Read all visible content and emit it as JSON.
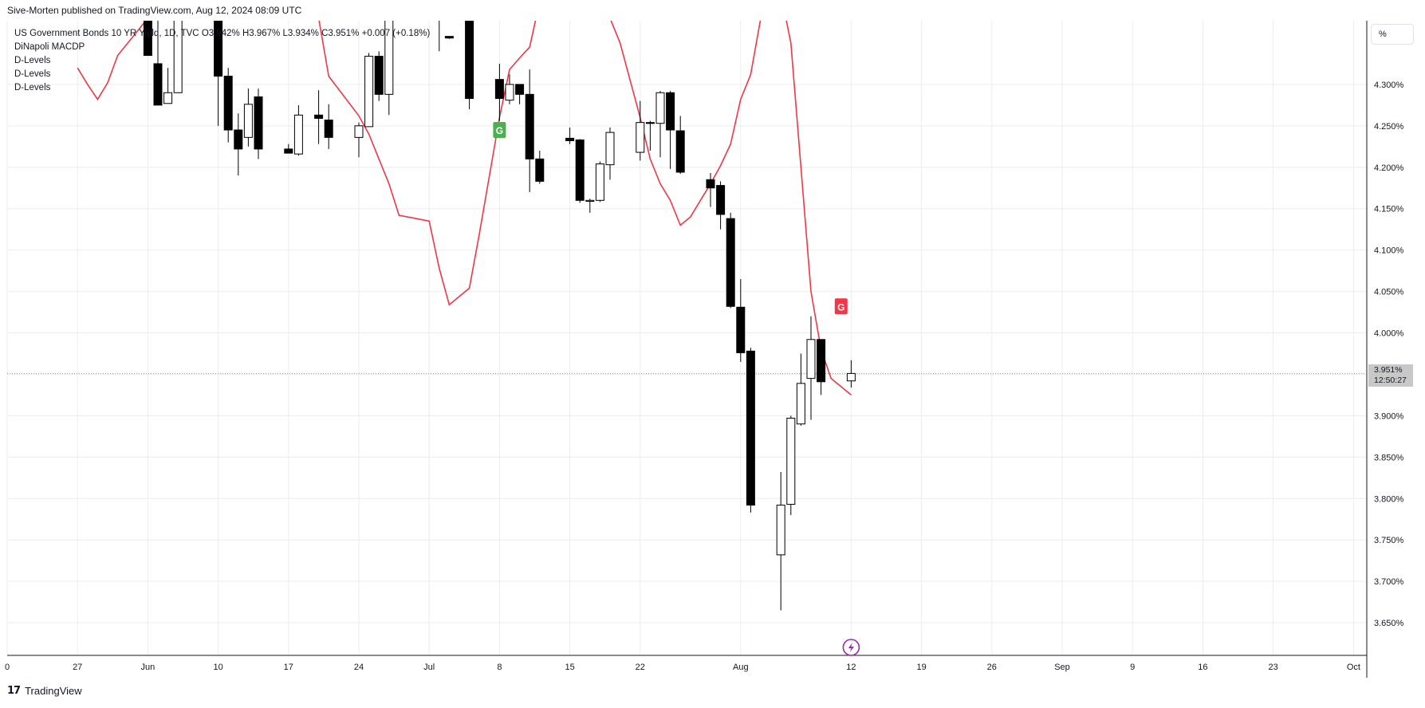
{
  "header": {
    "published": "Sive-Morten published on TradingView.com, Aug 12, 2024 08:09 UTC"
  },
  "legend": {
    "symbol": "US Government Bonds 10 YR Yield, 1D, TVC",
    "open": "O3.942%",
    "high": "H3.967%",
    "low": "L3.934%",
    "close": "C3.951%",
    "change": "+0.007 (+0.18%)",
    "indicators": [
      "DiNapoli MACDP",
      "D-Levels",
      "D-Levels",
      "D-Levels"
    ]
  },
  "price_axis": {
    "unit": "%",
    "last_price": "3.951%",
    "countdown": "12:50:27"
  },
  "footer": {
    "brand": "TradingView"
  },
  "colors": {
    "up_body": "#ffffff",
    "down_body": "#000000",
    "wick": "#000000",
    "macdp_line": "#f23645",
    "signal_green": "#4caf50",
    "signal_red": "#f23645",
    "grid": "#e9edf2",
    "event_icon": "#9c27b0"
  },
  "chart_data": {
    "type": "candlestick",
    "title": "US Government Bonds 10 YR Yield, 1D, TVC",
    "ylabel": "%",
    "ylim": [
      3.6,
      4.4
    ],
    "y_ticks": [
      3.65,
      3.7,
      3.75,
      3.8,
      3.85,
      3.9,
      3.95,
      4.0,
      4.05,
      4.1,
      4.15,
      4.2,
      4.25,
      4.3
    ],
    "y_tick_labels": [
      "3.650%",
      "3.700%",
      "3.750%",
      "3.800%",
      "3.850%",
      "3.900%",
      "3.950%",
      "4.000%",
      "4.050%",
      "4.100%",
      "4.150%",
      "4.200%",
      "4.250%",
      "4.300%"
    ],
    "x_tick_labels": [
      {
        "label": "0",
        "date": "2024-05-20"
      },
      {
        "label": "27",
        "date": "2024-05-27"
      },
      {
        "label": "Jun",
        "date": "2024-06-03"
      },
      {
        "label": "10",
        "date": "2024-06-10"
      },
      {
        "label": "17",
        "date": "2024-06-17"
      },
      {
        "label": "24",
        "date": "2024-06-24"
      },
      {
        "label": "Jul",
        "date": "2024-07-01"
      },
      {
        "label": "8",
        "date": "2024-07-08"
      },
      {
        "label": "15",
        "date": "2024-07-15"
      },
      {
        "label": "22",
        "date": "2024-07-22"
      },
      {
        "label": "Aug",
        "date": "2024-08-01"
      },
      {
        "label": "12",
        "date": "2024-08-12"
      },
      {
        "label": "19",
        "date": "2024-08-19"
      },
      {
        "label": "26",
        "date": "2024-08-26"
      },
      {
        "label": "Sep",
        "date": "2024-09-02"
      },
      {
        "label": "9",
        "date": "2024-09-09"
      },
      {
        "label": "16",
        "date": "2024-09-16"
      },
      {
        "label": "23",
        "date": "2024-09-23"
      },
      {
        "label": "Oct",
        "date": "2024-10-01"
      }
    ],
    "candles": [
      {
        "date": "2024-06-03",
        "o": 4.44,
        "h": 4.5,
        "l": 4.335,
        "c": 4.335
      },
      {
        "date": "2024-06-04",
        "o": 4.325,
        "h": 4.4,
        "l": 4.275,
        "c": 4.275
      },
      {
        "date": "2024-06-05",
        "o": 4.277,
        "h": 4.32,
        "l": 4.277,
        "c": 4.29
      },
      {
        "date": "2024-06-06",
        "o": 4.29,
        "h": 4.44,
        "l": 4.29,
        "c": 4.44
      },
      {
        "date": "2024-06-10",
        "o": 4.48,
        "h": 4.5,
        "l": 4.25,
        "c": 4.31
      },
      {
        "date": "2024-06-11",
        "o": 4.31,
        "h": 4.32,
        "l": 4.23,
        "c": 4.245
      },
      {
        "date": "2024-06-12",
        "o": 4.245,
        "h": 4.265,
        "l": 4.19,
        "c": 4.222
      },
      {
        "date": "2024-06-13",
        "o": 4.236,
        "h": 4.295,
        "l": 4.225,
        "c": 4.276
      },
      {
        "date": "2024-06-14",
        "o": 4.285,
        "h": 4.295,
        "l": 4.21,
        "c": 4.222
      },
      {
        "date": "2024-06-17",
        "o": 4.222,
        "h": 4.228,
        "l": 4.217,
        "c": 4.217
      },
      {
        "date": "2024-06-18",
        "o": 4.216,
        "h": 4.275,
        "l": 4.214,
        "c": 4.263
      },
      {
        "date": "2024-06-20",
        "o": 4.263,
        "h": 4.293,
        "l": 4.228,
        "c": 4.259
      },
      {
        "date": "2024-06-21",
        "o": 4.257,
        "h": 4.276,
        "l": 4.222,
        "c": 4.236
      },
      {
        "date": "2024-06-24",
        "o": 4.236,
        "h": 4.254,
        "l": 4.212,
        "c": 4.25
      },
      {
        "date": "2024-06-25",
        "o": 4.249,
        "h": 4.338,
        "l": 4.249,
        "c": 4.334
      },
      {
        "date": "2024-06-26",
        "o": 4.334,
        "h": 4.34,
        "l": 4.28,
        "c": 4.288
      },
      {
        "date": "2024-06-27",
        "o": 4.288,
        "h": 4.48,
        "l": 4.263,
        "c": 4.48
      },
      {
        "date": "2024-07-01",
        "o": 4.47,
        "h": 4.49,
        "l": 4.4,
        "c": 4.4
      },
      {
        "date": "2024-07-02",
        "o": 4.38,
        "h": 4.39,
        "l": 4.34,
        "c": 4.38
      },
      {
        "date": "2024-07-03",
        "o": 4.358,
        "h": 4.358,
        "l": 4.355,
        "c": 4.356
      },
      {
        "date": "2024-07-05",
        "o": 4.4,
        "h": 4.42,
        "l": 4.27,
        "c": 4.283
      },
      {
        "date": "2024-07-08",
        "o": 4.306,
        "h": 4.325,
        "l": 4.256,
        "c": 4.283
      },
      {
        "date": "2024-07-09",
        "o": 4.281,
        "h": 4.312,
        "l": 4.276,
        "c": 4.3
      },
      {
        "date": "2024-07-10",
        "o": 4.3,
        "h": 4.3,
        "l": 4.276,
        "c": 4.288
      },
      {
        "date": "2024-07-11",
        "o": 4.288,
        "h": 4.318,
        "l": 4.17,
        "c": 4.21
      },
      {
        "date": "2024-07-12",
        "o": 4.21,
        "h": 4.22,
        "l": 4.18,
        "c": 4.183
      },
      {
        "date": "2024-07-15",
        "o": 4.235,
        "h": 4.248,
        "l": 4.228,
        "c": 4.232
      },
      {
        "date": "2024-07-16",
        "o": 4.233,
        "h": 4.234,
        "l": 4.157,
        "c": 4.16
      },
      {
        "date": "2024-07-17",
        "o": 4.16,
        "h": 4.162,
        "l": 4.145,
        "c": 4.16
      },
      {
        "date": "2024-07-18",
        "o": 4.16,
        "h": 4.207,
        "l": 4.158,
        "c": 4.204
      },
      {
        "date": "2024-07-19",
        "o": 4.203,
        "h": 4.248,
        "l": 4.185,
        "c": 4.242
      },
      {
        "date": "2024-07-22",
        "o": 4.218,
        "h": 4.28,
        "l": 4.208,
        "c": 4.254
      },
      {
        "date": "2024-07-23",
        "o": 4.254,
        "h": 4.256,
        "l": 4.22,
        "c": 4.253
      },
      {
        "date": "2024-07-24",
        "o": 4.253,
        "h": 4.292,
        "l": 4.212,
        "c": 4.29
      },
      {
        "date": "2024-07-25",
        "o": 4.29,
        "h": 4.292,
        "l": 4.198,
        "c": 4.245
      },
      {
        "date": "2024-07-26",
        "o": 4.244,
        "h": 4.262,
        "l": 4.192,
        "c": 4.194
      },
      {
        "date": "2024-07-29",
        "o": 4.185,
        "h": 4.193,
        "l": 4.152,
        "c": 4.175
      },
      {
        "date": "2024-07-30",
        "o": 4.178,
        "h": 4.183,
        "l": 4.125,
        "c": 4.143
      },
      {
        "date": "2024-07-31",
        "o": 4.138,
        "h": 4.145,
        "l": 4.03,
        "c": 4.032
      },
      {
        "date": "2024-08-01",
        "o": 4.031,
        "h": 4.065,
        "l": 3.965,
        "c": 3.976
      },
      {
        "date": "2024-08-02",
        "o": 3.978,
        "h": 3.982,
        "l": 3.783,
        "c": 3.792
      },
      {
        "date": "2024-08-05",
        "o": 3.732,
        "h": 3.832,
        "l": 3.665,
        "c": 3.792
      },
      {
        "date": "2024-08-06",
        "o": 3.793,
        "h": 3.9,
        "l": 3.78,
        "c": 3.897
      },
      {
        "date": "2024-08-07",
        "o": 3.89,
        "h": 3.975,
        "l": 3.888,
        "c": 3.939
      },
      {
        "date": "2024-08-08",
        "o": 3.945,
        "h": 4.02,
        "l": 3.895,
        "c": 3.992
      },
      {
        "date": "2024-08-09",
        "o": 3.992,
        "h": 3.992,
        "l": 3.925,
        "c": 3.941
      },
      {
        "date": "2024-08-12",
        "o": 3.942,
        "h": 3.967,
        "l": 3.934,
        "c": 3.951
      }
    ],
    "indicator_line": {
      "name": "DiNapoli MACDP",
      "points": [
        {
          "date": "2024-05-27",
          "y": 4.32
        },
        {
          "date": "2024-05-28",
          "y": 4.3
        },
        {
          "date": "2024-05-29",
          "y": 4.282
        },
        {
          "date": "2024-05-30",
          "y": 4.302
        },
        {
          "date": "2024-05-31",
          "y": 4.335
        },
        {
          "date": "2024-06-03",
          "y": 4.38
        },
        {
          "date": "2024-06-04",
          "y": 4.42
        },
        {
          "date": "2024-06-14",
          "y": 4.45
        },
        {
          "date": "2024-06-17",
          "y": 4.44
        },
        {
          "date": "2024-06-18",
          "y": 4.41
        },
        {
          "date": "2024-06-20",
          "y": 4.38
        },
        {
          "date": "2024-06-21",
          "y": 4.31
        },
        {
          "date": "2024-06-24",
          "y": 4.262
        },
        {
          "date": "2024-06-25",
          "y": 4.24
        },
        {
          "date": "2024-06-26",
          "y": 4.21
        },
        {
          "date": "2024-06-27",
          "y": 4.18
        },
        {
          "date": "2024-06-28",
          "y": 4.142
        },
        {
          "date": "2024-07-01",
          "y": 4.135
        },
        {
          "date": "2024-07-02",
          "y": 4.078
        },
        {
          "date": "2024-07-03",
          "y": 4.034
        },
        {
          "date": "2024-07-05",
          "y": 4.054
        },
        {
          "date": "2024-07-06",
          "y": 4.12
        },
        {
          "date": "2024-07-07",
          "y": 4.19
        },
        {
          "date": "2024-07-08",
          "y": 4.26
        },
        {
          "date": "2024-07-09",
          "y": 4.318
        },
        {
          "date": "2024-07-10",
          "y": 4.332
        },
        {
          "date": "2024-07-11",
          "y": 4.345
        },
        {
          "date": "2024-07-12",
          "y": 4.4
        },
        {
          "date": "2024-07-13",
          "y": 4.45
        },
        {
          "date": "2024-07-16",
          "y": 4.45
        },
        {
          "date": "2024-07-17",
          "y": 4.42
        },
        {
          "date": "2024-07-18",
          "y": 4.41
        },
        {
          "date": "2024-07-19",
          "y": 4.38
        },
        {
          "date": "2024-07-20",
          "y": 4.35
        },
        {
          "date": "2024-07-22",
          "y": 4.26
        },
        {
          "date": "2024-07-23",
          "y": 4.21
        },
        {
          "date": "2024-07-24",
          "y": 4.18
        },
        {
          "date": "2024-07-25",
          "y": 4.16
        },
        {
          "date": "2024-07-26",
          "y": 4.13
        },
        {
          "date": "2024-07-27",
          "y": 4.14
        },
        {
          "date": "2024-07-29",
          "y": 4.18
        },
        {
          "date": "2024-07-30",
          "y": 4.202
        },
        {
          "date": "2024-07-31",
          "y": 4.228
        },
        {
          "date": "2024-08-01",
          "y": 4.282
        },
        {
          "date": "2024-08-02",
          "y": 4.312
        },
        {
          "date": "2024-08-03",
          "y": 4.38
        },
        {
          "date": "2024-08-04",
          "y": 4.42
        },
        {
          "date": "2024-08-05",
          "y": 4.41
        },
        {
          "date": "2024-08-06",
          "y": 4.35
        },
        {
          "date": "2024-08-07",
          "y": 4.2
        },
        {
          "date": "2024-08-08",
          "y": 4.05
        },
        {
          "date": "2024-08-09",
          "y": 3.98
        },
        {
          "date": "2024-08-10",
          "y": 3.945
        },
        {
          "date": "2024-08-12",
          "y": 3.925
        }
      ]
    },
    "signals": [
      {
        "label": "G",
        "date": "2024-07-08",
        "y": 4.245,
        "color": "green"
      },
      {
        "label": "G",
        "date": "2024-08-11",
        "y": 4.032,
        "color": "red"
      }
    ],
    "event_marker": {
      "date": "2024-08-12",
      "icon": "lightning-icon"
    },
    "last_price_line": 3.951,
    "grid": true
  }
}
